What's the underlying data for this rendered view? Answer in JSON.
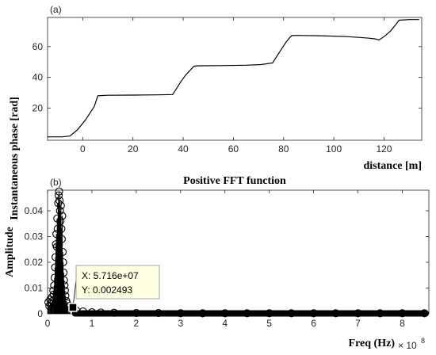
{
  "chart_data": [
    {
      "panel": "(a)",
      "type": "line",
      "title": "",
      "xlabel": "distance [m]",
      "ylabel": "Instantaneous phase [rad]",
      "xlim": [
        -14,
        135
      ],
      "ylim": [
        -1,
        79
      ],
      "xticks": [
        0,
        20,
        40,
        60,
        80,
        100,
        120
      ],
      "yticks": [
        20,
        40,
        60
      ],
      "grid": false,
      "series": [
        {
          "color": "#000000",
          "x": [
            -14,
            -8,
            -5,
            -2,
            1,
            3,
            4.6,
            6,
            10,
            20,
            30,
            35.8,
            37.5,
            39,
            41,
            43,
            44.3,
            46,
            55,
            65,
            71,
            75.6,
            77,
            79,
            81,
            82.5,
            83.3,
            85,
            95,
            105,
            110,
            114,
            116.5,
            118,
            120,
            122.5,
            124.5,
            126,
            130,
            134
          ],
          "y": [
            1.2,
            1.2,
            1.8,
            6,
            12,
            17,
            21,
            28,
            28.3,
            28.4,
            28.6,
            28.8,
            33,
            37,
            41.5,
            45,
            47.2,
            47.5,
            47.6,
            47.9,
            48.3,
            49.3,
            53,
            58,
            63,
            66,
            67.2,
            67.3,
            67.1,
            66.5,
            66,
            65.5,
            65,
            64.3,
            66.5,
            70,
            74,
            77.2,
            77.6,
            77.6
          ]
        }
      ]
    },
    {
      "panel": "(b)",
      "type": "scatter",
      "title": "Positive FFT function",
      "xlabel": "Freq (Hz)",
      "ylabel": "Amplitude",
      "x_exponent_label": "× 10",
      "x_exponent_power": "8",
      "x_scale": 100000000,
      "xlim": [
        0,
        8.6
      ],
      "ylim": [
        0,
        0.048
      ],
      "xticks": [
        "0",
        "1",
        "2",
        "3",
        "4",
        "5",
        "6",
        "7",
        "8"
      ],
      "yticks": [
        "0",
        "0.01",
        "0.02",
        "0.03",
        "0.04"
      ],
      "grid": false,
      "marker": "circle",
      "series": [
        {
          "color": "#000000",
          "x": [
            0.02,
            0.04,
            0.06,
            0.08,
            0.1,
            0.11,
            0.13,
            0.14,
            0.15,
            0.16,
            0.17,
            0.18,
            0.19,
            0.2,
            0.21,
            0.22,
            0.23,
            0.24,
            0.25,
            0.26,
            0.27,
            0.28,
            0.29,
            0.3,
            0.31,
            0.32,
            0.33,
            0.34,
            0.35,
            0.36,
            0.37,
            0.38,
            0.39,
            0.4,
            0.42,
            0.44,
            0.46,
            0.48,
            0.5,
            0.5716,
            0.65,
            0.8,
            1.0,
            1.2,
            1.5,
            2.0,
            2.5,
            3.0,
            3.5,
            4.0,
            4.5,
            5.0,
            5.5,
            6.0,
            6.5,
            7.0,
            7.5,
            8.0,
            8.5
          ],
          "y": [
            0.0045,
            0.003,
            0.0055,
            0.004,
            0.0065,
            0.005,
            0.009,
            0.0075,
            0.011,
            0.014,
            0.018,
            0.022,
            0.027,
            0.031,
            0.026,
            0.037,
            0.033,
            0.043,
            0.046,
            0.0475,
            0.044,
            0.04,
            0.036,
            0.042,
            0.033,
            0.029,
            0.038,
            0.024,
            0.02,
            0.016,
            0.013,
            0.011,
            0.009,
            0.007,
            0.005,
            0.004,
            0.003,
            0.0025,
            0.0028,
            0.002493,
            0.0012,
            0.0009,
            0.0006,
            0.0005,
            0.0004,
            0.0003,
            0.0003,
            0.0002,
            0.0002,
            0.0002,
            0.0002,
            0.0002,
            0.0002,
            0.0002,
            0.0002,
            0.0002,
            0.0002,
            0.0002,
            0.0002
          ]
        }
      ],
      "datatip": {
        "x_text": "X: 5.716e+07",
        "y_text": "Y: 0.002493",
        "x": 0.5716,
        "y": 0.002493
      }
    }
  ]
}
